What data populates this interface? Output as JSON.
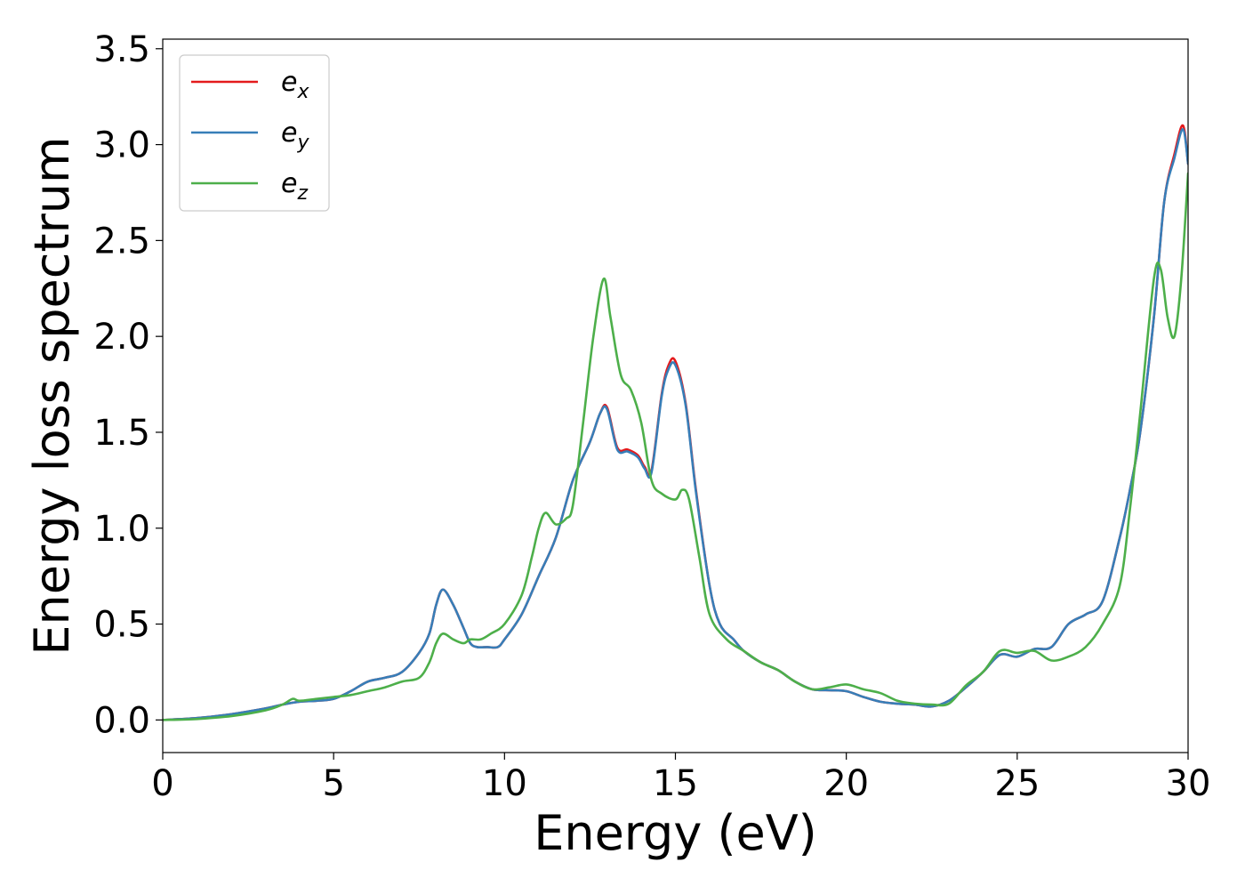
{
  "chart_data": {
    "type": "line",
    "title": "",
    "xlabel": "Energy (eV)",
    "ylabel": "Energy loss spectrum",
    "xlim": [
      0,
      30
    ],
    "ylim": [
      -0.17,
      3.55
    ],
    "xticks": [
      0,
      5,
      10,
      15,
      20,
      25,
      30
    ],
    "xtick_labels": [
      "0",
      "5",
      "10",
      "15",
      "20",
      "25",
      "30"
    ],
    "yticks": [
      0.0,
      0.5,
      1.0,
      1.5,
      2.0,
      2.5,
      3.0,
      3.5
    ],
    "ytick_labels": [
      "0.0",
      "0.5",
      "1.0",
      "1.5",
      "2.0",
      "2.5",
      "3.0",
      "3.5"
    ],
    "grid": false,
    "legend": {
      "position": "top-left",
      "entries": [
        {
          "base": "e",
          "sub": "x",
          "color": "#e41a1c"
        },
        {
          "base": "e",
          "sub": "y",
          "color": "#377eb8"
        },
        {
          "base": "e",
          "sub": "z",
          "color": "#4daf4a"
        }
      ]
    },
    "series": [
      {
        "name": "e_x",
        "color": "#e41a1c",
        "x": [
          0,
          1,
          2,
          3,
          3.5,
          4,
          4.5,
          5,
          5.5,
          6,
          6.5,
          7,
          7.5,
          7.8,
          8,
          8.2,
          8.5,
          8.8,
          9,
          9.2,
          9.5,
          9.8,
          10,
          10.5,
          11,
          11.5,
          12,
          12.5,
          12.8,
          13,
          13.3,
          13.6,
          13.9,
          14.1,
          14.3,
          14.6,
          14.8,
          15,
          15.3,
          15.6,
          16,
          16.3,
          16.7,
          17,
          17.5,
          18,
          18.5,
          19,
          19.5,
          20,
          20.5,
          21,
          21.5,
          22,
          22.5,
          23,
          23.5,
          24,
          24.5,
          25,
          25.5,
          26,
          26.5,
          27,
          27.5,
          28,
          28.3,
          28.6,
          29,
          29.3,
          29.6,
          29.85,
          30
        ],
        "y": [
          0.0,
          0.01,
          0.03,
          0.06,
          0.08,
          0.095,
          0.1,
          0.11,
          0.15,
          0.2,
          0.22,
          0.25,
          0.35,
          0.45,
          0.6,
          0.68,
          0.6,
          0.48,
          0.4,
          0.38,
          0.38,
          0.38,
          0.42,
          0.55,
          0.75,
          0.95,
          1.25,
          1.45,
          1.6,
          1.63,
          1.42,
          1.41,
          1.38,
          1.32,
          1.3,
          1.7,
          1.85,
          1.87,
          1.65,
          1.2,
          0.7,
          0.5,
          0.42,
          0.36,
          0.3,
          0.26,
          0.2,
          0.16,
          0.155,
          0.15,
          0.12,
          0.095,
          0.085,
          0.08,
          0.07,
          0.1,
          0.17,
          0.25,
          0.34,
          0.33,
          0.37,
          0.38,
          0.5,
          0.55,
          0.62,
          0.95,
          1.2,
          1.5,
          2.1,
          2.7,
          2.95,
          3.1,
          2.9
        ]
      },
      {
        "name": "e_y",
        "color": "#377eb8",
        "x": [
          0,
          1,
          2,
          3,
          3.5,
          4,
          4.5,
          5,
          5.5,
          6,
          6.5,
          7,
          7.5,
          7.8,
          8,
          8.2,
          8.5,
          8.8,
          9,
          9.2,
          9.5,
          9.8,
          10,
          10.5,
          11,
          11.5,
          12,
          12.5,
          12.8,
          13,
          13.3,
          13.6,
          13.9,
          14.1,
          14.3,
          14.6,
          14.8,
          15,
          15.3,
          15.6,
          16,
          16.3,
          16.7,
          17,
          17.5,
          18,
          18.5,
          19,
          19.5,
          20,
          20.5,
          21,
          21.5,
          22,
          22.5,
          23,
          23.5,
          24,
          24.5,
          25,
          25.5,
          26,
          26.5,
          27,
          27.5,
          28,
          28.3,
          28.6,
          29,
          29.3,
          29.6,
          29.85,
          30
        ],
        "y": [
          0.0,
          0.01,
          0.03,
          0.06,
          0.08,
          0.095,
          0.1,
          0.11,
          0.15,
          0.2,
          0.22,
          0.25,
          0.35,
          0.45,
          0.6,
          0.68,
          0.6,
          0.48,
          0.4,
          0.38,
          0.38,
          0.38,
          0.42,
          0.55,
          0.75,
          0.95,
          1.25,
          1.45,
          1.6,
          1.62,
          1.41,
          1.4,
          1.37,
          1.31,
          1.29,
          1.69,
          1.83,
          1.85,
          1.64,
          1.19,
          0.7,
          0.5,
          0.42,
          0.36,
          0.3,
          0.26,
          0.2,
          0.16,
          0.155,
          0.15,
          0.12,
          0.095,
          0.085,
          0.08,
          0.07,
          0.1,
          0.17,
          0.25,
          0.34,
          0.33,
          0.37,
          0.38,
          0.5,
          0.55,
          0.62,
          0.95,
          1.2,
          1.5,
          2.1,
          2.7,
          2.93,
          3.08,
          2.9
        ]
      },
      {
        "name": "e_z",
        "color": "#4daf4a",
        "x": [
          0,
          1,
          2,
          3,
          3.5,
          3.8,
          4,
          4.5,
          5,
          5.5,
          6,
          6.5,
          7,
          7.5,
          7.8,
          8,
          8.2,
          8.5,
          8.8,
          9,
          9.3,
          9.6,
          10,
          10.5,
          10.8,
          11,
          11.2,
          11.5,
          11.8,
          12,
          12.3,
          12.6,
          12.9,
          13.1,
          13.4,
          13.7,
          14,
          14.3,
          14.6,
          15,
          15.2,
          15.4,
          15.7,
          16,
          16.5,
          17,
          17.5,
          18,
          18.5,
          19,
          19.5,
          20,
          20.5,
          21,
          21.5,
          22,
          22.5,
          23,
          23.5,
          24,
          24.5,
          25,
          25.5,
          26,
          26.5,
          27,
          27.5,
          28,
          28.3,
          28.6,
          29,
          29.2,
          29.4,
          29.6,
          29.8,
          30
        ],
        "y": [
          0.0,
          0.005,
          0.02,
          0.05,
          0.08,
          0.11,
          0.1,
          0.11,
          0.12,
          0.13,
          0.15,
          0.17,
          0.2,
          0.22,
          0.3,
          0.4,
          0.45,
          0.42,
          0.4,
          0.42,
          0.42,
          0.45,
          0.5,
          0.65,
          0.85,
          1.0,
          1.08,
          1.02,
          1.05,
          1.12,
          1.55,
          2.0,
          2.3,
          2.1,
          1.8,
          1.72,
          1.55,
          1.25,
          1.18,
          1.15,
          1.2,
          1.15,
          0.85,
          0.55,
          0.42,
          0.36,
          0.3,
          0.26,
          0.2,
          0.16,
          0.17,
          0.185,
          0.16,
          0.14,
          0.1,
          0.085,
          0.08,
          0.085,
          0.18,
          0.25,
          0.36,
          0.35,
          0.36,
          0.31,
          0.33,
          0.38,
          0.5,
          0.7,
          1.1,
          1.6,
          2.3,
          2.35,
          2.1,
          2.0,
          2.3,
          2.85
        ]
      }
    ]
  }
}
